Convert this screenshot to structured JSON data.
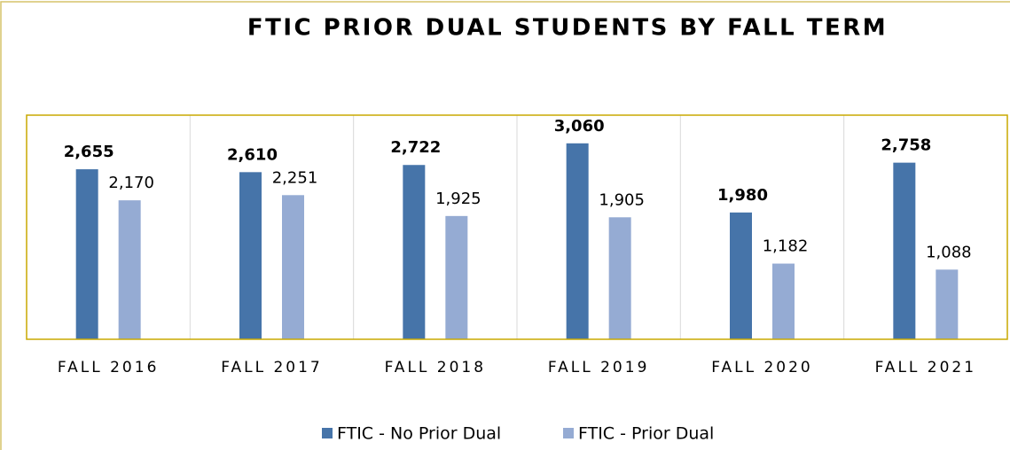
{
  "chart_data": {
    "type": "bar",
    "title": "FTIC PRIOR DUAL STUDENTS BY FALL TERM",
    "categories": [
      "FALL 2016",
      "FALL 2017",
      "FALL 2018",
      "FALL 2019",
      "FALL 2020",
      "FALL 2021"
    ],
    "series": [
      {
        "name": "FTIC - No Prior Dual",
        "color": "#4674a9",
        "values": [
          2655,
          2610,
          2722,
          3060,
          1980,
          2758
        ],
        "value_labels": [
          "2,655",
          "2,610",
          "2,722",
          "3,060",
          "1,980",
          "2,758"
        ]
      },
      {
        "name": "FTIC - Prior Dual",
        "color": "#95abd3",
        "values": [
          2170,
          2251,
          1925,
          1905,
          1182,
          1088
        ],
        "value_labels": [
          "2,170",
          "2,251",
          "1,925",
          "1,905",
          "1,182",
          "1,088"
        ]
      }
    ],
    "ylim": [
      0,
      3500
    ],
    "legend": "bottom"
  }
}
